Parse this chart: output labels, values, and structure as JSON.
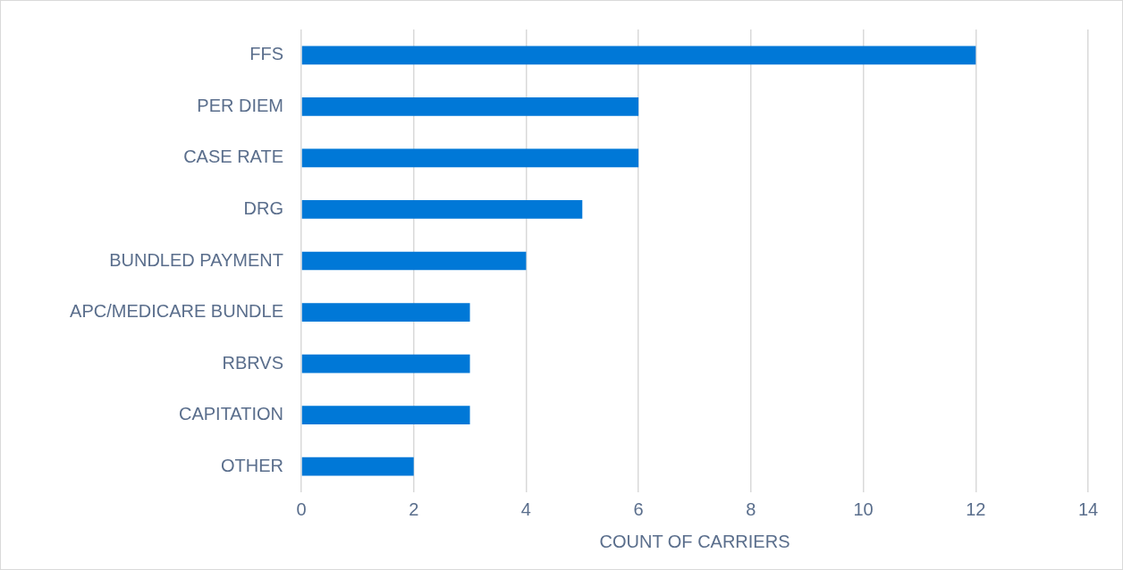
{
  "chart_data": {
    "type": "bar",
    "orientation": "horizontal",
    "xlabel": "COUNT OF CARRIERS",
    "categories": [
      "FFS",
      "PER DIEM",
      "CASE RATE",
      "DRG",
      "BUNDLED PAYMENT",
      "APC/MEDICARE BUNDLE",
      "RBRVS",
      "CAPITATION",
      "OTHER"
    ],
    "values": [
      12,
      6,
      6,
      5,
      4,
      3,
      3,
      3,
      2
    ],
    "color": "#0078d7",
    "xlim": [
      0,
      14
    ],
    "xticks": [
      0,
      2,
      4,
      6,
      8,
      10,
      12,
      14
    ],
    "grid": "x"
  }
}
